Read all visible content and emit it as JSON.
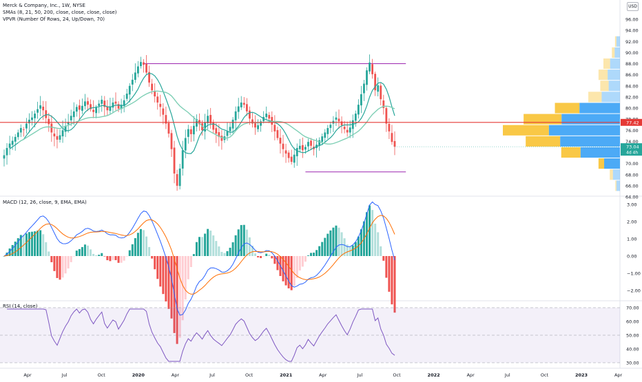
{
  "title": "Merck & Company, Inc., 1W, NYSE",
  "indicators": [
    "SMAs (8, 21, 50, 200, close, close, close, close)",
    "VPVR (Number Of Rows, 24, Up/Down, 70)"
  ],
  "currency": "USD",
  "colors": {
    "up": "#26a69a",
    "down": "#ef5350",
    "sma_fast": "#26a69a",
    "sma_slow": "#7ecfb5",
    "level": "#9c27b0",
    "redline": "#e53935",
    "macd": "#2962ff",
    "signal": "#ff6d00",
    "rsi": "#7e57c2"
  },
  "chart_data": [
    {
      "type": "candlestick",
      "name": "price",
      "price_labels": {
        "current": "73.04",
        "countdown": "4d 4h",
        "line": "77.42"
      },
      "y_ticks": [
        "64.00",
        "66.00",
        "68.00",
        "70.00",
        "72.00",
        "74.00",
        "76.00",
        "78.00",
        "80.00",
        "82.00",
        "84.00",
        "86.00",
        "88.00",
        "90.00",
        "92.00",
        "94.00",
        "96.00"
      ],
      "ylim": [
        64,
        97
      ],
      "x_start": "2019-01-07",
      "weekly_close": [
        71.5,
        72.8,
        73.6,
        74.1,
        74.8,
        75.6,
        76.4,
        76.1,
        77.2,
        77.9,
        78.3,
        79.0,
        79.8,
        80.5,
        79.6,
        78.2,
        77.1,
        75.6,
        74.9,
        74.3,
        75.1,
        76.0,
        76.8,
        77.5,
        78.6,
        79.4,
        80.2,
        79.7,
        80.4,
        81.2,
        80.6,
        79.8,
        79.3,
        80.1,
        80.8,
        81.5,
        80.2,
        79.6,
        80.3,
        81.0,
        80.8,
        79.9,
        80.6,
        81.4,
        82.6,
        84.0,
        85.1,
        86.4,
        87.5,
        88.3,
        87.8,
        86.4,
        84.6,
        83.2,
        82.1,
        81.0,
        80.2,
        78.8,
        77.2,
        75.4,
        72.6,
        68.2,
        66.0,
        69.1,
        72.4,
        74.6,
        76.2,
        75.3,
        76.8,
        78.0,
        77.1,
        76.0,
        77.4,
        78.6,
        77.2,
        76.1,
        75.4,
        74.8,
        74.1,
        74.9,
        75.8,
        76.6,
        77.9,
        79.4,
        80.3,
        81.0,
        80.6,
        79.4,
        78.1,
        77.2,
        76.5,
        76.9,
        77.6,
        78.4,
        79.0,
        78.1,
        77.0,
        75.8,
        74.6,
        73.6,
        72.6,
        71.8,
        71.0,
        70.3,
        71.6,
        72.8,
        73.2,
        72.4,
        73.0,
        73.9,
        73.2,
        72.6,
        73.4,
        74.2,
        74.9,
        75.6,
        76.4,
        77.0,
        77.7,
        78.3,
        77.6,
        76.9,
        76.2,
        75.6,
        76.5,
        77.8,
        79.0,
        80.6,
        82.5,
        84.4,
        86.8,
        88.2,
        86.1,
        83.2,
        84.1,
        81.6,
        80.0,
        77.2,
        75.8,
        73.9,
        73.04
      ],
      "levels": [
        88.0,
        68.5
      ],
      "red_line": 77.42,
      "vpvr": [
        {
          "price": 92,
          "up": 1,
          "down": 0.4
        },
        {
          "price": 90,
          "up": 1.5,
          "down": 0.8
        },
        {
          "price": 88,
          "up": 2.8,
          "down": 1.9
        },
        {
          "price": 86,
          "up": 3.5,
          "down": 2.6
        },
        {
          "price": 84,
          "up": 3.2,
          "down": 2.4
        },
        {
          "price": 82,
          "up": 5.2,
          "down": 3.8
        },
        {
          "price": 80,
          "up": 11.5,
          "down": 7.0
        },
        {
          "price": 78,
          "up": 16.6,
          "down": 10.8
        },
        {
          "price": 76,
          "up": 20.2,
          "down": 13.1
        },
        {
          "price": 74,
          "up": 17.0,
          "down": 9.8
        },
        {
          "price": 72,
          "up": 11.2,
          "down": 5.5
        },
        {
          "price": 70,
          "up": 4.5,
          "down": 1.6
        },
        {
          "price": 68,
          "up": 2.0,
          "down": 0.9
        },
        {
          "price": 66,
          "up": 1.0,
          "down": 0.3
        }
      ]
    },
    {
      "type": "line",
      "name": "macd",
      "title": "MACD (12, 26, close, 9, EMA, EMA)",
      "y_ticks": [
        "3.00",
        "2.00",
        "1.00",
        "0.00",
        "−1.00",
        "−2.00"
      ],
      "ylim": [
        -2.5,
        3.1
      ]
    },
    {
      "type": "line",
      "name": "rsi",
      "title": "RSI (14, close)",
      "y_ticks": [
        "70.00",
        "60.00",
        "50.00",
        "40.00",
        "30.00"
      ],
      "ylim": [
        29,
        72
      ],
      "bands": [
        70,
        50,
        30
      ]
    }
  ],
  "x_ticks": [
    "Apr",
    "Jul",
    "Oct",
    "2020",
    "Apr",
    "Jul",
    "Oct",
    "2021",
    "Apr",
    "Jul",
    "Oct",
    "2022",
    "Apr",
    "Jul",
    "Oct",
    "2023",
    "Apr"
  ]
}
